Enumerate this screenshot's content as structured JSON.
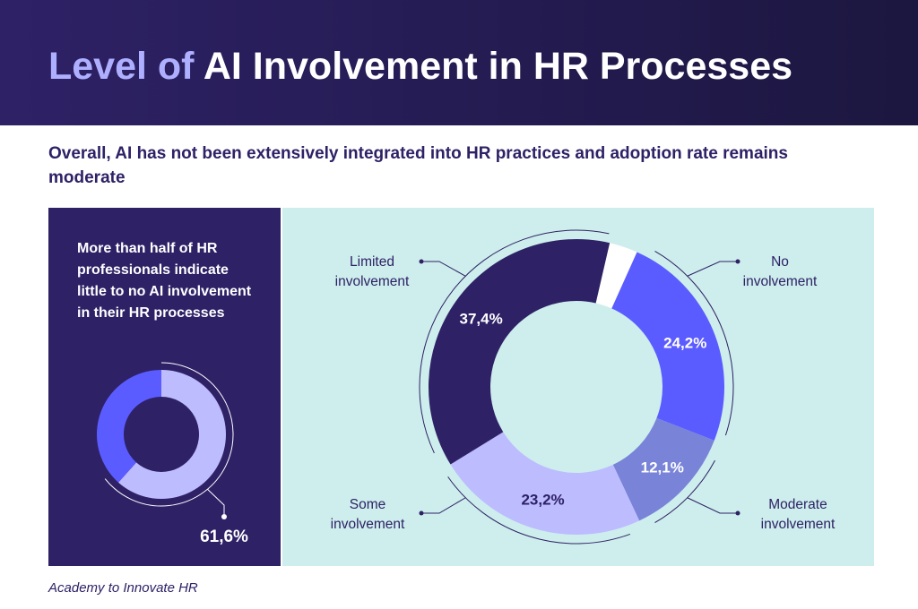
{
  "header": {
    "title_part1": "Level of",
    "title_part2": "AI Involvement in HR Processes"
  },
  "subtitle": "Overall, AI has not been extensively integrated into HR practices and adoption rate remains moderate",
  "left_panel": {
    "text": "More than half of HR professionals indicate little to no AI involvement in their HR processes"
  },
  "source": "Academy to Innovate HR",
  "chart_data": [
    {
      "type": "pie",
      "variant": "donut",
      "start_at": "top",
      "direction": "clockwise",
      "values": [
        61.6,
        38.4
      ],
      "colors": [
        "#bdbcff",
        "#5b5cff"
      ],
      "data_labels": [
        "61,6%"
      ]
    },
    {
      "type": "pie",
      "variant": "donut",
      "direction": "clockwise",
      "categories": [
        "",
        "No involvement",
        "Moderate involvement",
        "Some involvement",
        "Limited involvement"
      ],
      "values": [
        3.1,
        24.2,
        12.1,
        23.2,
        37.4
      ],
      "colors": [
        "#ffffff",
        "#5b5cff",
        "#7983d8",
        "#bdbcff",
        "#2e2166"
      ],
      "data_labels": [
        "",
        "24,2%",
        "12,1%",
        "23,2%",
        "37,4%"
      ],
      "label_colors": [
        "",
        "#ffffff",
        "#ffffff",
        "#2e2166",
        "#ffffff"
      ],
      "legend_lines": {
        "limited": [
          "Limited",
          "involvement"
        ],
        "no": [
          "No",
          "involvement"
        ],
        "some": [
          "Some",
          "involvement"
        ],
        "moderate": [
          "Moderate",
          "involvement"
        ]
      }
    }
  ]
}
